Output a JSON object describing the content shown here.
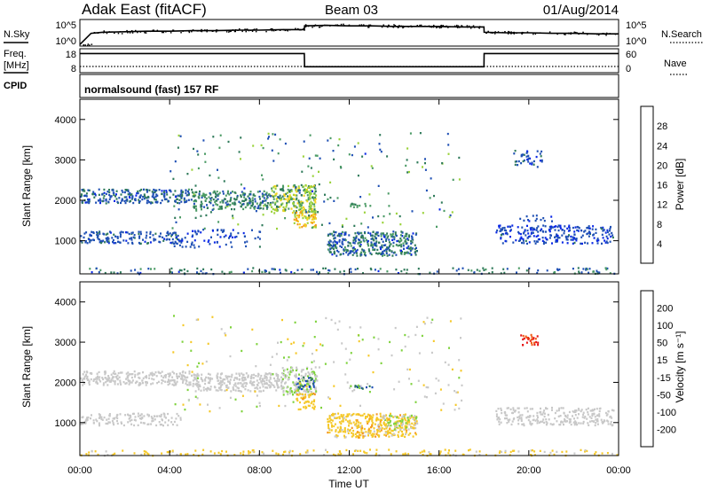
{
  "header": {
    "station": "Adak East (fitACF)",
    "beam": "Beam 03",
    "date": "01/Aug/2014"
  },
  "summary_panel": {
    "nsky_label": "N.Sky",
    "nsky_ticks": [
      "10^5",
      "10^0"
    ],
    "nsearch_label": "N.Search",
    "nsearch_ticks": [
      "10^5",
      "10^0"
    ],
    "freq_label": "Freq.",
    "freq_unit": "[MHz]",
    "freq_ticks": [
      "18",
      "8"
    ],
    "nave_label": "Nave",
    "nave_ticks": [
      "60",
      "0"
    ],
    "cpid_label": "CPID",
    "cpid_value": "normalsound (fast) 157 RF"
  },
  "colors": {
    "power_scale": [
      "#0a28e6",
      "#1e4fb4",
      "#2f7a5a",
      "#4a9a64",
      "#9ad23a",
      "#f2d21e",
      "#f29a1a",
      "#f0641a",
      "#e61414"
    ],
    "velocity_scale": [
      "#e61414",
      "#f05a14",
      "#f5961e",
      "#f5c828",
      "#c8c8c8",
      "#7ed23c",
      "#2f7a5a",
      "#1e4fb4",
      "#0a28e6"
    ]
  },
  "chart_data": [
    {
      "type": "line",
      "panel": "N.Sky / N.Search",
      "x_unit": "hours UT",
      "x": [
        0,
        0.5,
        1,
        2,
        3,
        4,
        5,
        6,
        7,
        8,
        9,
        10,
        10.01,
        11,
        12,
        13,
        14,
        15,
        16,
        17,
        18,
        18.01,
        19,
        20,
        21,
        22,
        23,
        24
      ],
      "series": [
        {
          "values": [
            0.3,
            2.4,
            2.6,
            2.7,
            2.8,
            2.8,
            2.9,
            2.9,
            3.0,
            3.0,
            3.1,
            3.1,
            3.8,
            3.9,
            3.8,
            3.8,
            3.7,
            3.7,
            3.7,
            3.6,
            3.6,
            2.6,
            2.5,
            2.5,
            2.4,
            2.4,
            2.3,
            2.3
          ]
        }
      ],
      "ylim": [
        0,
        5
      ]
    },
    {
      "type": "line",
      "panel": "Freq. / Nave",
      "x_unit": "hours UT",
      "x": [
        0,
        10,
        10.01,
        18,
        18.01,
        24
      ],
      "series": [
        {
          "values": [
            16.0,
            16.0,
            10.5,
            10.5,
            16.0,
            16.0
          ]
        },
        {
          "values": [
            16,
            16,
            16,
            16,
            16,
            16
          ]
        }
      ],
      "ylim": [
        8,
        18
      ]
    },
    {
      "type": "heatmap",
      "title": "",
      "xlabel": "",
      "ylabel": "Slant Range [km]",
      "colorbar_label": "Power [dB]",
      "colorbar_ticks": [
        "4",
        "8",
        "12",
        "16",
        "20",
        "24",
        "28"
      ],
      "xticks": [
        "00:00",
        "04:00",
        "08:00",
        "12:00",
        "16:00",
        "20:00",
        "00:00"
      ],
      "yticks": [
        "1000",
        "2000",
        "3000",
        "4000"
      ],
      "xlim": [
        0,
        24
      ],
      "ylim": [
        180,
        4500
      ],
      "clim": [
        0,
        31
      ],
      "regions": [
        {
          "t0": 0.0,
          "t1": 5.0,
          "r0": 1950,
          "r1": 2300,
          "v0": 3,
          "v1": 9,
          "density": 0.55
        },
        {
          "t0": 5.0,
          "t1": 8.5,
          "r0": 1800,
          "r1": 2250,
          "v0": 5,
          "v1": 14,
          "density": 0.6
        },
        {
          "t0": 8.5,
          "t1": 10.5,
          "r0": 1700,
          "r1": 2400,
          "v0": 8,
          "v1": 20,
          "density": 0.65
        },
        {
          "t0": 9.5,
          "t1": 10.5,
          "r0": 1350,
          "r1": 1750,
          "v0": 14,
          "v1": 24,
          "density": 0.6
        },
        {
          "t0": 0.0,
          "t1": 4.5,
          "r0": 950,
          "r1": 1250,
          "v0": 3,
          "v1": 8,
          "density": 0.45
        },
        {
          "t0": 4.0,
          "t1": 8.0,
          "r0": 850,
          "r1": 1300,
          "v0": 2,
          "v1": 7,
          "density": 0.18
        },
        {
          "t0": 11.0,
          "t1": 15.0,
          "r0": 650,
          "r1": 1250,
          "v0": 3,
          "v1": 12,
          "density": 0.6
        },
        {
          "t0": 12.0,
          "t1": 13.0,
          "r0": 1850,
          "r1": 1950,
          "v0": 8,
          "v1": 14,
          "density": 0.5
        },
        {
          "t0": 18.5,
          "t1": 23.8,
          "r0": 950,
          "r1": 1400,
          "v0": 2,
          "v1": 7,
          "density": 0.4
        },
        {
          "t0": 19.5,
          "t1": 21.0,
          "r0": 1500,
          "r1": 1650,
          "v0": 3,
          "v1": 6,
          "density": 0.25
        },
        {
          "t0": 19.3,
          "t1": 20.6,
          "r0": 2850,
          "r1": 3250,
          "v0": 3,
          "v1": 8,
          "density": 0.3
        },
        {
          "t0": 0.0,
          "t1": 24.0,
          "r0": 200,
          "r1": 350,
          "v0": 3,
          "v1": 12,
          "density": 0.18
        },
        {
          "t0": 4.0,
          "t1": 17.0,
          "r0": 1300,
          "r1": 3700,
          "v0": 3,
          "v1": 16,
          "density": 0.025
        }
      ]
    },
    {
      "type": "heatmap",
      "title": "",
      "xlabel": "Time UT",
      "ylabel": "Slant Range [km]",
      "colorbar_label": "Velocity [m s⁻¹]",
      "colorbar_ticks": [
        "-200",
        "-100",
        "-50",
        "-15",
        "15",
        "50",
        "100",
        "200"
      ],
      "xticks": [
        "00:00",
        "04:00",
        "08:00",
        "12:00",
        "16:00",
        "20:00",
        "00:00"
      ],
      "yticks": [
        "1000",
        "2000",
        "3000",
        "4000"
      ],
      "xlim": [
        0,
        24
      ],
      "ylim": [
        180,
        4500
      ],
      "clim": [
        -250,
        250
      ],
      "regions": [
        {
          "t0": 0.0,
          "t1": 5.0,
          "r0": 1950,
          "r1": 2300,
          "v0": -15,
          "v1": 15,
          "density": 0.55
        },
        {
          "t0": 5.0,
          "t1": 9.0,
          "r0": 1800,
          "r1": 2250,
          "v0": -20,
          "v1": 20,
          "density": 0.6
        },
        {
          "t0": 9.0,
          "t1": 10.5,
          "r0": 1700,
          "r1": 2400,
          "v0": -20,
          "v1": 60,
          "density": 0.55
        },
        {
          "t0": 9.6,
          "t1": 10.4,
          "r0": 1850,
          "r1": 2150,
          "v0": 60,
          "v1": 220,
          "density": 0.55
        },
        {
          "t0": 9.6,
          "t1": 10.5,
          "r0": 1350,
          "r1": 1750,
          "v0": -90,
          "v1": -30,
          "density": 0.55
        },
        {
          "t0": 0.0,
          "t1": 4.5,
          "r0": 950,
          "r1": 1250,
          "v0": -15,
          "v1": 15,
          "density": 0.4
        },
        {
          "t0": 11.0,
          "t1": 15.0,
          "r0": 650,
          "r1": 1250,
          "v0": -90,
          "v1": -20,
          "density": 0.6
        },
        {
          "t0": 13.5,
          "t1": 15.0,
          "r0": 850,
          "r1": 1200,
          "v0": 15,
          "v1": 45,
          "density": 0.4
        },
        {
          "t0": 12.0,
          "t1": 13.0,
          "r0": 1850,
          "r1": 1950,
          "v0": 60,
          "v1": 160,
          "density": 0.55
        },
        {
          "t0": 18.5,
          "t1": 23.8,
          "r0": 950,
          "r1": 1400,
          "v0": -15,
          "v1": 15,
          "density": 0.4
        },
        {
          "t0": 19.6,
          "t1": 20.4,
          "r0": 2950,
          "r1": 3250,
          "v0": -240,
          "v1": -180,
          "density": 0.45
        },
        {
          "t0": 0.0,
          "t1": 24.0,
          "r0": 200,
          "r1": 350,
          "v0": -60,
          "v1": -20,
          "density": 0.2
        },
        {
          "t0": 4.0,
          "t1": 17.0,
          "r0": 1300,
          "r1": 3700,
          "v0": -60,
          "v1": 60,
          "density": 0.025
        }
      ]
    }
  ]
}
